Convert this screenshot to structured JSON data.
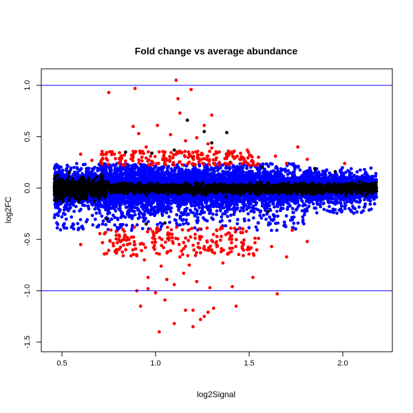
{
  "chart_data": {
    "type": "scatter",
    "title": "Fold change vs average abundance",
    "xlabel": "log2Signal",
    "ylabel": "log2FC",
    "xlim": [
      0.4,
      2.3
    ],
    "ylim": [
      -1.5,
      1.1
    ],
    "xticks": [
      "0.5",
      "1.0",
      "1.5",
      "2.0"
    ],
    "yticks": [
      "-1.5",
      "-1.0",
      "-0.5",
      "0.0",
      "0.5",
      "1.0"
    ],
    "hlines": [
      1.0,
      -1.0
    ],
    "grid": false,
    "legend": "none",
    "colors": {
      "black": "#000000",
      "blue": "#0000ff",
      "red": "#ff0000",
      "reference_line": "#0000ff"
    },
    "series": [
      {
        "color": "#ff0000",
        "points": [
          [
            0.75,
            0.93
          ],
          [
            0.89,
            0.97
          ],
          [
            1.11,
            1.05
          ],
          [
            1.19,
            0.96
          ],
          [
            1.12,
            0.87
          ],
          [
            1.3,
            0.71
          ],
          [
            1.13,
            0.73
          ],
          [
            1.26,
            0.61
          ],
          [
            0.88,
            0.6
          ],
          [
            0.91,
            0.53
          ],
          [
            1.01,
            0.61
          ],
          [
            1.08,
            0.52
          ],
          [
            1.16,
            0.46
          ],
          [
            1.22,
            0.49
          ],
          [
            1.28,
            0.43
          ],
          [
            1.3,
            0.39
          ],
          [
            0.78,
            0.33
          ],
          [
            0.82,
            0.29
          ],
          [
            0.95,
            0.4
          ],
          [
            1.05,
            0.35
          ],
          [
            1.18,
            0.33
          ],
          [
            1.38,
            0.31
          ],
          [
            1.49,
            0.37
          ],
          [
            1.55,
            0.3
          ],
          [
            1.64,
            0.31
          ],
          [
            1.76,
            0.4
          ],
          [
            1.81,
            0.28
          ],
          [
            1.7,
            0.24
          ],
          [
            0.6,
            0.33
          ],
          [
            0.66,
            0.27
          ],
          [
            2.01,
            0.24
          ],
          [
            1.45,
            0.28
          ],
          [
            0.6,
            -0.55
          ],
          [
            0.79,
            -0.46
          ],
          [
            0.85,
            -0.55
          ],
          [
            0.9,
            -0.66
          ],
          [
            0.94,
            -0.7
          ],
          [
            0.99,
            -0.58
          ],
          [
            1.03,
            -0.76
          ],
          [
            1.08,
            -0.61
          ],
          [
            1.13,
            -0.67
          ],
          [
            1.18,
            -0.75
          ],
          [
            1.24,
            -0.63
          ],
          [
            1.3,
            -0.51
          ],
          [
            1.35,
            -0.62
          ],
          [
            1.4,
            -0.47
          ],
          [
            1.46,
            -0.53
          ],
          [
            1.52,
            -0.87
          ],
          [
            1.41,
            -0.96
          ],
          [
            1.29,
            -0.97
          ],
          [
            1.22,
            -0.91
          ],
          [
            1.15,
            -0.83
          ],
          [
            1.06,
            -0.89
          ],
          [
            0.96,
            -0.98
          ],
          [
            0.9,
            -1.0
          ],
          [
            0.92,
            -1.15
          ],
          [
            1.0,
            -1.02
          ],
          [
            1.05,
            -1.09
          ],
          [
            1.1,
            -1.32
          ],
          [
            1.16,
            -1.19
          ],
          [
            1.2,
            -1.19
          ],
          [
            1.24,
            -1.28
          ],
          [
            1.26,
            -1.25
          ],
          [
            1.28,
            -1.21
          ],
          [
            1.31,
            -1.17
          ],
          [
            1.43,
            -1.15
          ],
          [
            1.65,
            -1.03
          ],
          [
            1.02,
            -1.4
          ],
          [
            1.2,
            -1.35
          ],
          [
            1.7,
            -0.67
          ],
          [
            1.62,
            -0.57
          ],
          [
            1.55,
            -0.49
          ],
          [
            1.81,
            -0.52
          ],
          [
            1.73,
            -0.41
          ],
          [
            0.82,
            -0.51
          ],
          [
            1.36,
            -0.73
          ],
          [
            0.96,
            -0.87
          ],
          [
            1.1,
            -0.94
          ]
        ]
      },
      {
        "color": "#000000",
        "points": [
          [
            1.17,
            0.66
          ],
          [
            1.26,
            0.55
          ],
          [
            1.38,
            0.54
          ],
          [
            1.3,
            0.44
          ],
          [
            0.84,
            0.35
          ],
          [
            0.98,
            0.34
          ],
          [
            1.1,
            0.37
          ],
          [
            1.2,
            0.29
          ],
          [
            1.4,
            0.25
          ],
          [
            1.57,
            0.2
          ],
          [
            1.85,
            0.19
          ],
          [
            1.96,
            0.16
          ],
          [
            2.05,
            0.05
          ],
          [
            2.1,
            0.03
          ],
          [
            2.12,
            -0.02
          ],
          [
            0.95,
            -0.35
          ],
          [
            1.05,
            -0.34
          ],
          [
            0.74,
            -0.3
          ],
          [
            1.6,
            -0.23
          ],
          [
            0.48,
            0.05
          ],
          [
            0.5,
            -0.04
          ],
          [
            0.46,
            0.01
          ]
        ]
      }
    ]
  }
}
